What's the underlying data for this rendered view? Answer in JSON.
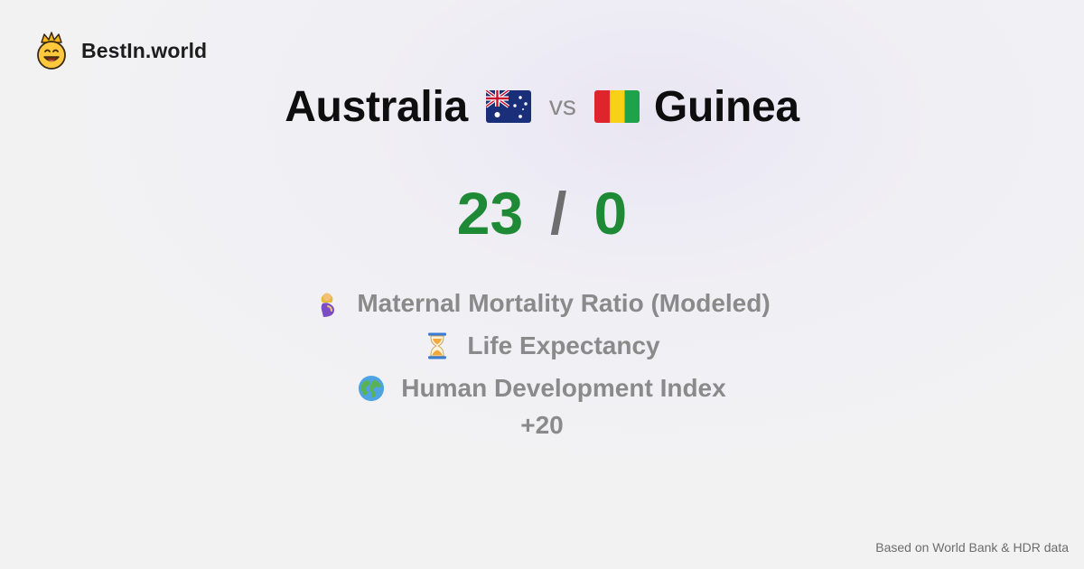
{
  "brand": {
    "name": "BestIn.world",
    "logo_icon": "crowned-smiley-icon"
  },
  "matchup": {
    "country_a": {
      "name": "Australia",
      "flag_icon": "australia-flag-icon"
    },
    "vs_label": "vs",
    "country_b": {
      "name": "Guinea",
      "flag_icon": "guinea-flag-icon"
    }
  },
  "score": {
    "a": "23",
    "separator": "/",
    "b": "0",
    "color": "#1f8a35"
  },
  "metrics": [
    {
      "icon": "pregnant-woman-icon",
      "label": "Maternal Mortality Ratio (Modeled)"
    },
    {
      "icon": "hourglass-icon",
      "label": "Life Expectancy"
    },
    {
      "icon": "globe-icon",
      "label": "Human Development Index"
    }
  ],
  "more_label": "+20",
  "footnote": "Based on World Bank & HDR data"
}
